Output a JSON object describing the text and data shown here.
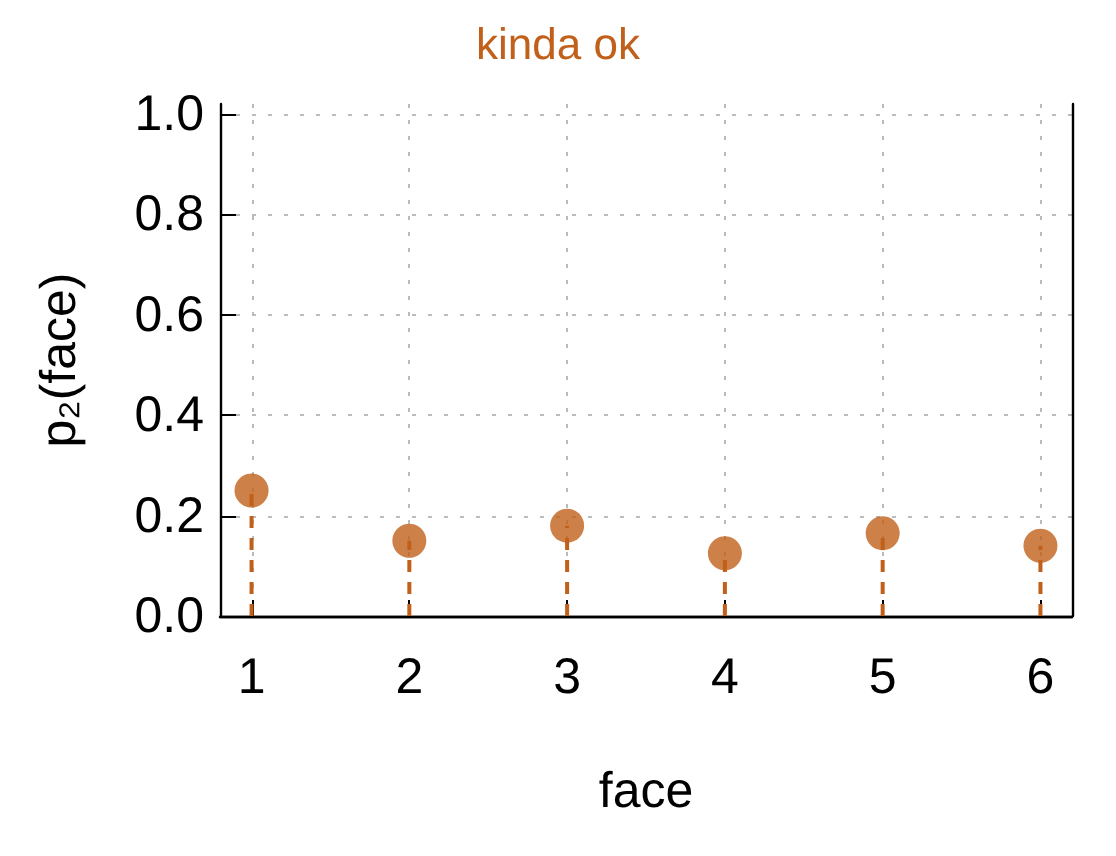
{
  "chart_data": {
    "type": "lollipop",
    "title": "kinda ok",
    "xlabel": "face",
    "ylabel": "p₂(face)",
    "x": [
      1,
      2,
      3,
      4,
      5,
      6
    ],
    "series": [
      {
        "color": "#c1601a",
        "values": [
          0.25,
          0.15,
          0.18,
          0.125,
          0.165,
          0.14
        ]
      }
    ],
    "xlim": [
      0.8,
      6.2
    ],
    "xticks": [
      1,
      2,
      3,
      4,
      5,
      6
    ],
    "ylim": [
      0,
      1.02
    ],
    "yticks": [
      {
        "value": 0,
        "label": "0.0"
      },
      {
        "value": 0.2,
        "label": "0.2"
      },
      {
        "value": 0.4,
        "label": "0.4"
      },
      {
        "value": 0.6,
        "label": "0.6"
      },
      {
        "value": 0.8,
        "label": "0.8"
      },
      {
        "value": 1,
        "label": "1.0"
      }
    ],
    "grid": true,
    "marker": "circle",
    "line_style": "dashed"
  }
}
